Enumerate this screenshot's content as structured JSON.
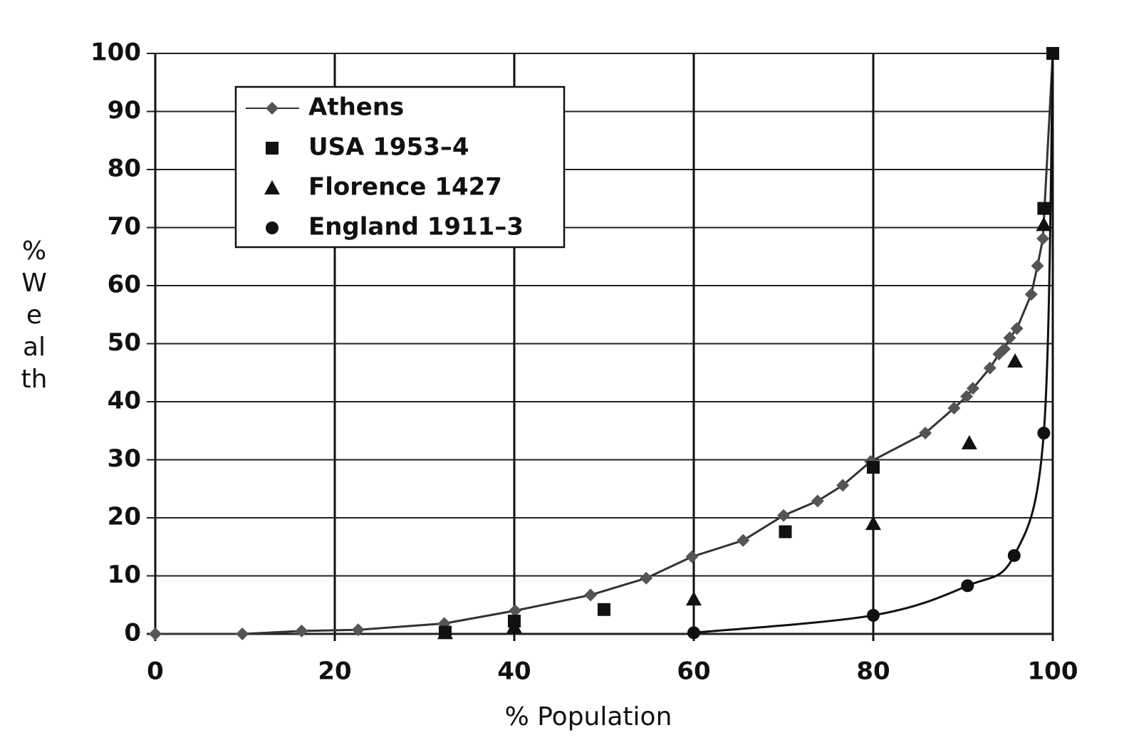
{
  "chart_data": {
    "type": "scatter",
    "xlabel": "% Population",
    "ylabel": "% Wealth",
    "xlim": [
      0,
      100
    ],
    "ylim": [
      0,
      100
    ],
    "xticks": [
      0,
      20,
      40,
      60,
      80,
      100
    ],
    "yticks": [
      0,
      10,
      20,
      30,
      40,
      50,
      60,
      70,
      80,
      90,
      100
    ],
    "grid": true,
    "legend": "upper left",
    "series": [
      {
        "name": "Athens",
        "color": "#555555",
        "marker": "diamond",
        "line": "straight",
        "x": [
          0,
          9.7,
          16.3,
          22.6,
          32.2,
          40.1,
          48.5,
          54.7,
          59.8,
          65.5,
          70.0,
          73.8,
          76.6,
          79.7,
          85.8,
          89.0,
          90.4,
          91.1,
          93.0,
          94.0,
          94.6,
          95.2,
          96.0,
          97.6,
          98.3,
          98.9,
          100
        ],
        "values": [
          0,
          0,
          0.5,
          0.7,
          1.8,
          4.0,
          6.7,
          9.6,
          13.3,
          16.1,
          20.4,
          22.9,
          25.6,
          29.7,
          34.6,
          38.9,
          40.9,
          42.3,
          45.8,
          48.2,
          49.1,
          51.0,
          52.6,
          58.5,
          63.4,
          68.1,
          100
        ]
      },
      {
        "name": "USA 1953–4",
        "color": "#111111",
        "marker": "square",
        "line": "none",
        "x": [
          32.3,
          40,
          50,
          70.2,
          80,
          99,
          100
        ],
        "values": [
          0.3,
          2.2,
          4.2,
          17.6,
          28.7,
          73.3,
          100
        ]
      },
      {
        "name": "Florence 1427",
        "color": "#111111",
        "marker": "triangle",
        "line": "none",
        "x": [
          32.3,
          40,
          60,
          80,
          90.7,
          95.8,
          99
        ],
        "values": [
          0.2,
          1.2,
          6,
          19,
          32.9,
          47,
          70.5
        ]
      },
      {
        "name": "England 1911–3",
        "color": "#111111",
        "marker": "circle",
        "line": "smooth",
        "x": [
          60,
          80,
          90.5,
          95.7,
          99,
          100
        ],
        "values": [
          0.2,
          3.2,
          8.3,
          13.5,
          34.6,
          100
        ]
      }
    ]
  }
}
